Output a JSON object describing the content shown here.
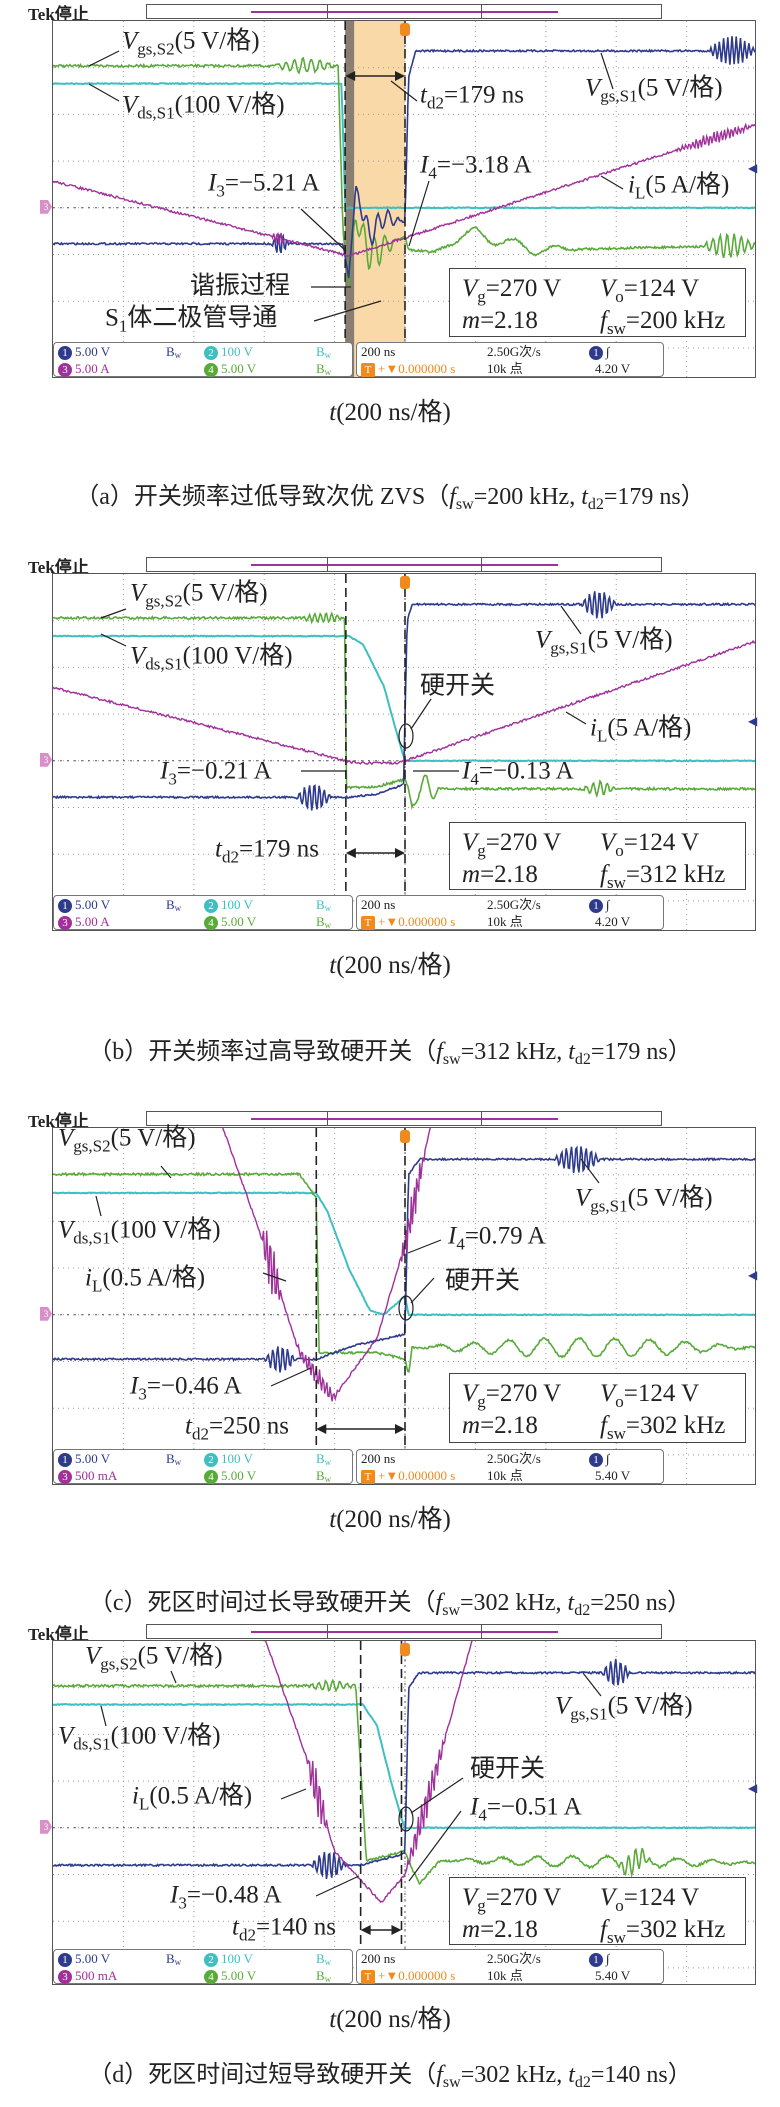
{
  "colors": {
    "ch1": "#2e3a8c",
    "ch2": "#3fbfbf",
    "ch3": "#a0309a",
    "ch4": "#5aaa3a",
    "trigger": "#f08a1c",
    "diode_shade": "#f9d9a8",
    "resonance_shade": "#8a7e70"
  },
  "panels": [
    {
      "header": "Tek停止",
      "labels": {
        "vgs2": {
          "sym": "V",
          "sub": "gs,S2",
          "rest": "(5 V/格)"
        },
        "vds1": {
          "sym": "V",
          "sub": "ds,S1",
          "rest": "(100 V/格)"
        },
        "td2": {
          "sym": "t",
          "sub": "d2",
          "rest": "=179 ns"
        },
        "vgs1": {
          "sym": "V",
          "sub": "gs,S1",
          "rest": "(5 V/格)"
        },
        "i4": {
          "sym": "I",
          "sub": "4",
          "rest": "=−3.18 A"
        },
        "i3": {
          "sym": "I",
          "sub": "3",
          "rest": "=−5.21 A"
        },
        "il": {
          "sym": "i",
          "sub": "L",
          "rest": "(5 A/格)"
        },
        "resonance": {
          "sym": "",
          "sub": "",
          "rest": "谐振过程"
        },
        "diode": {
          "sym": "S",
          "sub": "1",
          "rest": "体二极管导通"
        }
      },
      "params": {
        "vg": {
          "sym": "V",
          "sub": "g",
          "rest": "=270 V"
        },
        "vo": {
          "sym": "V",
          "sub": "o",
          "rest": "=124 V"
        },
        "m": {
          "sym": "m",
          "rest": "=2.18"
        },
        "fsw": {
          "sym": "f",
          "sub": "sw",
          "rest": "=200 kHz"
        }
      },
      "legend": {
        "ch1_num": "1",
        "ch1": "5.00 V",
        "ch2_num": "2",
        "ch2": "100 V",
        "ch3_num": "3",
        "ch3": "5.00 A",
        "ch4_num": "4",
        "ch4": "5.00 V",
        "bw": "B",
        "bw_sub": "w",
        "timebase": "200 ns",
        "rate": "2.50G次/s",
        "trig_src": "1",
        "trig_slope": "∫",
        "trig_mark": "T",
        "trig_offset": "+▼0.000000 s",
        "points": "10k 点",
        "trig_level": "4.20 V"
      },
      "xlabel": {
        "sym": "t",
        "rest": "(200 ns/格)"
      },
      "caption": {
        "prefix": "（a）开关频率过低导致次优 ZVS（",
        "f": "f",
        "fsub": "sw",
        "fval": "=200 kHz, ",
        "t": "t",
        "tsub": "d2",
        "tval": "=179 ns",
        "close": "）"
      }
    },
    {
      "header": "Tek停止",
      "labels": {
        "vgs2": {
          "sym": "V",
          "sub": "gs,S2",
          "rest": "(5 V/格)"
        },
        "vds1": {
          "sym": "V",
          "sub": "ds,S1",
          "rest": "(100 V/格)"
        },
        "vgs1": {
          "sym": "V",
          "sub": "gs,S1",
          "rest": "(5 V/格)"
        },
        "hard": {
          "sym": "",
          "sub": "",
          "rest": "硬开关"
        },
        "il": {
          "sym": "i",
          "sub": "L",
          "rest": "(5 A/格)"
        },
        "i3": {
          "sym": "I",
          "sub": "3",
          "rest": "=−0.21 A"
        },
        "i4": {
          "sym": "I",
          "sub": "4",
          "rest": "=−0.13 A"
        },
        "td2": {
          "sym": "t",
          "sub": "d2",
          "rest": "=179 ns"
        }
      },
      "params": {
        "vg": {
          "sym": "V",
          "sub": "g",
          "rest": "=270 V"
        },
        "vo": {
          "sym": "V",
          "sub": "o",
          "rest": "=124 V"
        },
        "m": {
          "sym": "m",
          "rest": "=2.18"
        },
        "fsw": {
          "sym": "f",
          "sub": "sw",
          "rest": "=312 kHz"
        }
      },
      "legend": {
        "ch1_num": "1",
        "ch1": "5.00 V",
        "ch2_num": "2",
        "ch2": "100 V",
        "ch3_num": "3",
        "ch3": "5.00 A",
        "ch4_num": "4",
        "ch4": "5.00 V",
        "bw": "B",
        "bw_sub": "w",
        "timebase": "200 ns",
        "rate": "2.50G次/s",
        "trig_src": "1",
        "trig_slope": "∫",
        "trig_mark": "T",
        "trig_offset": "+▼0.000000 s",
        "points": "10k 点",
        "trig_level": "4.20 V"
      },
      "xlabel": {
        "sym": "t",
        "rest": "(200 ns/格)"
      },
      "caption": {
        "prefix": "（b）开关频率过高导致硬开关（",
        "f": "f",
        "fsub": "sw",
        "fval": "=312 kHz, ",
        "t": "t",
        "tsub": "d2",
        "tval": "=179 ns",
        "close": "）"
      }
    },
    {
      "header": "Tek停止",
      "labels": {
        "vgs2": {
          "sym": "V",
          "sub": "gs,S2",
          "rest": "(5 V/格)"
        },
        "vds1": {
          "sym": "V",
          "sub": "ds,S1",
          "rest": "(100 V/格)"
        },
        "vgs1": {
          "sym": "V",
          "sub": "gs,S1",
          "rest": "(5 V/格)"
        },
        "i4": {
          "sym": "I",
          "sub": "4",
          "rest": "=0.79 A"
        },
        "il": {
          "sym": "i",
          "sub": "L",
          "rest": "(0.5 A/格)"
        },
        "hard": {
          "sym": "",
          "sub": "",
          "rest": "硬开关"
        },
        "i3": {
          "sym": "I",
          "sub": "3",
          "rest": "=−0.46 A"
        },
        "td2": {
          "sym": "t",
          "sub": "d2",
          "rest": "=250 ns"
        }
      },
      "params": {
        "vg": {
          "sym": "V",
          "sub": "g",
          "rest": "=270 V"
        },
        "vo": {
          "sym": "V",
          "sub": "o",
          "rest": "=124 V"
        },
        "m": {
          "sym": "m",
          "rest": "=2.18"
        },
        "fsw": {
          "sym": "f",
          "sub": "sw",
          "rest": "=302 kHz"
        }
      },
      "legend": {
        "ch1_num": "1",
        "ch1": "5.00 V",
        "ch2_num": "2",
        "ch2": "100 V",
        "ch3_num": "3",
        "ch3": "500 mA",
        "ch4_num": "4",
        "ch4": "5.00 V",
        "bw": "B",
        "bw_sub": "w",
        "timebase": "200 ns",
        "rate": "2.50G次/s",
        "trig_src": "1",
        "trig_slope": "∫",
        "trig_mark": "T",
        "trig_offset": "+▼0.000000 s",
        "points": "10k 点",
        "trig_level": "5.40 V"
      },
      "xlabel": {
        "sym": "t",
        "rest": "(200 ns/格)"
      },
      "caption": {
        "prefix": "（c）死区时间过长导致硬开关（",
        "f": "f",
        "fsub": "sw",
        "fval": "=302 kHz, ",
        "t": "t",
        "tsub": "d2",
        "tval": "=250 ns",
        "close": "）"
      }
    },
    {
      "header": "Tek停止",
      "labels": {
        "vgs2": {
          "sym": "V",
          "sub": "gs,S2",
          "rest": "(5 V/格)"
        },
        "vds1": {
          "sym": "V",
          "sub": "ds,S1",
          "rest": "(100 V/格)"
        },
        "vgs1": {
          "sym": "V",
          "sub": "gs,S1",
          "rest": "(5 V/格)"
        },
        "hard": {
          "sym": "",
          "sub": "",
          "rest": "硬开关"
        },
        "i4": {
          "sym": "I",
          "sub": "4",
          "rest": "=−0.51 A"
        },
        "il": {
          "sym": "i",
          "sub": "L",
          "rest": "(0.5 A/格)"
        },
        "i3": {
          "sym": "I",
          "sub": "3",
          "rest": "=−0.48 A"
        },
        "td2": {
          "sym": "t",
          "sub": "d2",
          "rest": "=140 ns"
        }
      },
      "params": {
        "vg": {
          "sym": "V",
          "sub": "g",
          "rest": "=270 V"
        },
        "vo": {
          "sym": "V",
          "sub": "o",
          "rest": "=124 V"
        },
        "m": {
          "sym": "m",
          "rest": "=2.18"
        },
        "fsw": {
          "sym": "f",
          "sub": "sw",
          "rest": "=302 kHz"
        }
      },
      "legend": {
        "ch1_num": "1",
        "ch1": "5.00 V",
        "ch2_num": "2",
        "ch2": "100 V",
        "ch3_num": "3",
        "ch3": "500 mA",
        "ch4_num": "4",
        "ch4": "5.00 V",
        "bw": "B",
        "bw_sub": "w",
        "timebase": "200 ns",
        "rate": "2.50G次/s",
        "trig_src": "1",
        "trig_slope": "∫",
        "trig_mark": "T",
        "trig_offset": "+▼0.000000 s",
        "points": "10k 点",
        "trig_level": "5.40 V"
      },
      "xlabel": {
        "sym": "t",
        "rest": "(200 ns/格)"
      },
      "caption": {
        "prefix": "（d）死区时间过短导致硬开关（",
        "f": "f",
        "fsub": "sw",
        "fval": "=302 kHz, ",
        "t": "t",
        "tsub": "d2",
        "tval": "=140 ns",
        "close": "）"
      }
    }
  ]
}
